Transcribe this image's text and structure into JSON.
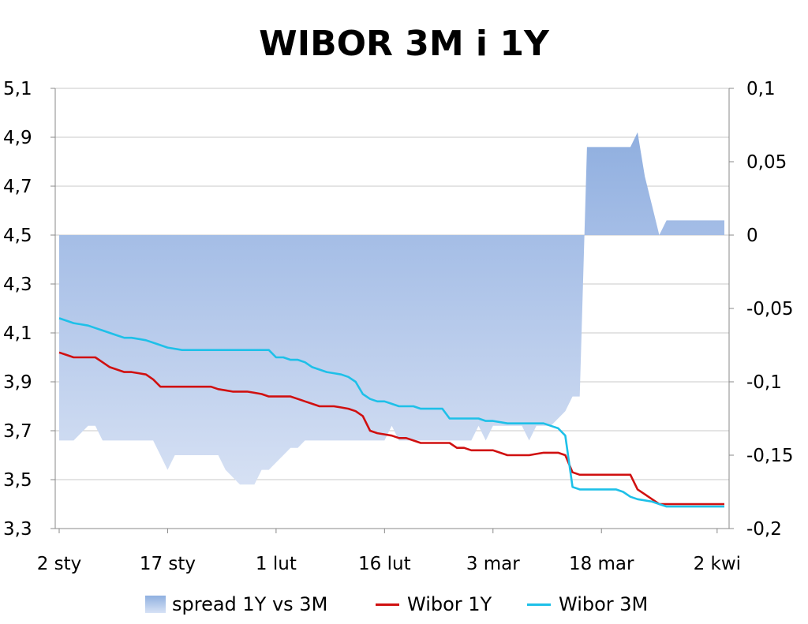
{
  "chart_data": {
    "type": "line",
    "title": "WIBOR 3M i 1Y",
    "x_tick_labels": [
      "2 sty",
      "17 sty",
      "1 lut",
      "16 lut",
      "3 mar",
      "18 mar",
      "2 kwi"
    ],
    "x_tick_days": [
      0,
      15,
      30,
      45,
      60,
      75,
      91
    ],
    "y_left": {
      "range": [
        3.3,
        5.1
      ],
      "ticks": [
        "3,3",
        "3,5",
        "3,7",
        "3,9",
        "4,1",
        "4,3",
        "4,5",
        "4,7",
        "4,9",
        "5,1"
      ]
    },
    "y_right": {
      "range": [
        -0.2,
        0.1
      ],
      "ticks": [
        "-0,2",
        "-0,15",
        "-0,1",
        "-0,05",
        "0",
        "0,05",
        "0,1"
      ]
    },
    "grid": "horizontal",
    "legend_position": "bottom",
    "series": [
      {
        "name": "spread 1Y vs 3M",
        "type": "area",
        "axis": "right",
        "color": "#8fb0e0",
        "x": [
          0,
          2,
          4,
          5,
          6,
          7,
          8,
          9,
          10,
          11,
          12,
          13,
          14,
          15,
          16,
          17,
          18,
          19,
          20,
          21,
          22,
          23,
          24,
          25,
          26,
          27,
          28,
          29,
          30,
          31,
          32,
          33,
          34,
          35,
          36,
          37,
          38,
          39,
          40,
          41,
          42,
          43,
          44,
          45,
          46,
          47,
          48,
          49,
          50,
          51,
          52,
          53,
          54,
          55,
          56,
          57,
          58,
          59,
          60,
          61,
          62,
          63,
          64,
          65,
          66,
          67,
          68,
          69,
          70,
          71,
          72,
          73,
          74,
          75,
          76,
          77,
          78,
          79,
          80,
          81,
          82,
          83,
          84,
          85,
          86,
          87,
          88,
          89,
          90,
          91,
          92
        ],
        "y": [
          -0.14,
          -0.14,
          -0.13,
          -0.13,
          -0.14,
          -0.14,
          -0.14,
          -0.14,
          -0.14,
          -0.14,
          -0.14,
          -0.14,
          -0.15,
          -0.16,
          -0.15,
          -0.15,
          -0.15,
          -0.15,
          -0.15,
          -0.15,
          -0.15,
          -0.16,
          -0.165,
          -0.17,
          -0.17,
          -0.17,
          -0.16,
          -0.16,
          -0.155,
          -0.15,
          -0.145,
          -0.145,
          -0.14,
          -0.14,
          -0.14,
          -0.14,
          -0.14,
          -0.14,
          -0.14,
          -0.14,
          -0.14,
          -0.14,
          -0.14,
          -0.14,
          -0.13,
          -0.14,
          -0.14,
          -0.14,
          -0.14,
          -0.14,
          -0.14,
          -0.14,
          -0.14,
          -0.14,
          -0.14,
          -0.14,
          -0.13,
          -0.14,
          -0.13,
          -0.13,
          -0.13,
          -0.13,
          -0.13,
          -0.14,
          -0.13,
          -0.13,
          -0.13,
          -0.125,
          -0.12,
          -0.11,
          -0.11,
          0.06,
          0.06,
          0.06,
          0.06,
          0.06,
          0.06,
          0.06,
          0.07,
          0.04,
          0.02,
          0.0,
          0.01,
          0.01,
          0.01,
          0.01,
          0.01,
          0.01,
          0.01,
          0.01,
          0.01
        ]
      },
      {
        "name": "Wibor 1Y",
        "type": "line",
        "axis": "left",
        "color": "#d01010",
        "x": [
          0,
          1,
          2,
          3,
          4,
          5,
          6,
          7,
          8,
          9,
          10,
          11,
          12,
          13,
          14,
          15,
          16,
          17,
          18,
          19,
          20,
          21,
          22,
          23,
          24,
          25,
          26,
          27,
          28,
          29,
          30,
          31,
          32,
          33,
          34,
          35,
          36,
          37,
          38,
          39,
          40,
          41,
          42,
          43,
          44,
          45,
          46,
          47,
          48,
          49,
          50,
          51,
          52,
          53,
          54,
          55,
          56,
          57,
          58,
          59,
          60,
          61,
          62,
          63,
          64,
          65,
          66,
          67,
          68,
          69,
          70,
          71,
          72,
          73,
          74,
          75,
          76,
          77,
          78,
          79,
          80,
          81,
          82,
          83,
          84,
          85,
          86,
          87,
          88,
          89,
          90,
          91,
          92
        ],
        "y": [
          4.02,
          4.01,
          4.0,
          4.0,
          4.0,
          4.0,
          3.98,
          3.96,
          3.95,
          3.94,
          3.94,
          3.935,
          3.93,
          3.91,
          3.88,
          3.88,
          3.88,
          3.88,
          3.88,
          3.88,
          3.88,
          3.88,
          3.87,
          3.865,
          3.86,
          3.86,
          3.86,
          3.855,
          3.85,
          3.84,
          3.84,
          3.84,
          3.84,
          3.83,
          3.82,
          3.81,
          3.8,
          3.8,
          3.8,
          3.795,
          3.79,
          3.78,
          3.76,
          3.7,
          3.69,
          3.685,
          3.68,
          3.67,
          3.67,
          3.66,
          3.65,
          3.65,
          3.65,
          3.65,
          3.65,
          3.63,
          3.63,
          3.62,
          3.62,
          3.62,
          3.62,
          3.61,
          3.6,
          3.6,
          3.6,
          3.6,
          3.605,
          3.61,
          3.61,
          3.61,
          3.6,
          3.53,
          3.52,
          3.52,
          3.52,
          3.52,
          3.52,
          3.52,
          3.52,
          3.52,
          3.46,
          3.44,
          3.42,
          3.4,
          3.4,
          3.4,
          3.4,
          3.4,
          3.4,
          3.4,
          3.4,
          3.4,
          3.4
        ]
      },
      {
        "name": "Wibor 3M",
        "type": "line",
        "axis": "left",
        "color": "#1ec0e8",
        "x": [
          0,
          1,
          2,
          3,
          4,
          5,
          6,
          7,
          8,
          9,
          10,
          11,
          12,
          13,
          14,
          15,
          16,
          17,
          18,
          19,
          20,
          21,
          22,
          23,
          24,
          25,
          26,
          27,
          28,
          29,
          30,
          31,
          32,
          33,
          34,
          35,
          36,
          37,
          38,
          39,
          40,
          41,
          42,
          43,
          44,
          45,
          46,
          47,
          48,
          49,
          50,
          51,
          52,
          53,
          54,
          55,
          56,
          57,
          58,
          59,
          60,
          61,
          62,
          63,
          64,
          65,
          66,
          67,
          68,
          69,
          70,
          71,
          72,
          73,
          74,
          75,
          76,
          77,
          78,
          79,
          80,
          81,
          82,
          83,
          84,
          85,
          86,
          87,
          88,
          89,
          90,
          91,
          92
        ],
        "y": [
          4.16,
          4.15,
          4.14,
          4.135,
          4.13,
          4.12,
          4.11,
          4.1,
          4.09,
          4.08,
          4.08,
          4.075,
          4.07,
          4.06,
          4.05,
          4.04,
          4.035,
          4.03,
          4.03,
          4.03,
          4.03,
          4.03,
          4.03,
          4.03,
          4.03,
          4.03,
          4.03,
          4.03,
          4.03,
          4.03,
          4.0,
          4.0,
          3.99,
          3.99,
          3.98,
          3.96,
          3.95,
          3.94,
          3.935,
          3.93,
          3.92,
          3.9,
          3.85,
          3.83,
          3.82,
          3.82,
          3.81,
          3.8,
          3.8,
          3.8,
          3.79,
          3.79,
          3.79,
          3.79,
          3.75,
          3.75,
          3.75,
          3.75,
          3.75,
          3.74,
          3.74,
          3.735,
          3.73,
          3.73,
          3.73,
          3.73,
          3.73,
          3.73,
          3.72,
          3.71,
          3.68,
          3.47,
          3.46,
          3.46,
          3.46,
          3.46,
          3.46,
          3.46,
          3.45,
          3.43,
          3.42,
          3.415,
          3.41,
          3.4,
          3.39,
          3.39,
          3.39,
          3.39,
          3.39,
          3.39,
          3.39,
          3.39,
          3.39
        ]
      }
    ]
  }
}
